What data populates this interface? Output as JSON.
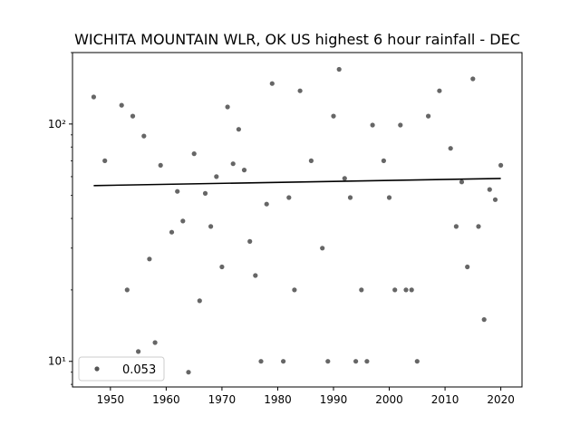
{
  "chart_data": {
    "type": "scatter",
    "title": "WICHITA MOUNTAIN WLR, OK US highest 6 hour rainfall - DEC",
    "xlabel": "",
    "ylabel": "",
    "xlim": [
      1943.2,
      2023.8
    ],
    "ylim": [
      7.8,
      200
    ],
    "yscale": "log",
    "x_ticks": [
      1950,
      1960,
      1970,
      1980,
      1990,
      2000,
      2010,
      2020
    ],
    "y_ticks": [
      {
        "value": 10,
        "label": "10¹"
      },
      {
        "value": 100,
        "label": "10²"
      }
    ],
    "grid": false,
    "legend": {
      "placement": "lower-left",
      "label": "0.053"
    },
    "colors": {
      "points": "#555555",
      "trend": "#000000"
    },
    "points": [
      {
        "x": 1947,
        "y": 130
      },
      {
        "x": 1948,
        "y": 10
      },
      {
        "x": 1949,
        "y": 70
      },
      {
        "x": 1952,
        "y": 120
      },
      {
        "x": 1953,
        "y": 20
      },
      {
        "x": 1954,
        "y": 108
      },
      {
        "x": 1955,
        "y": 11
      },
      {
        "x": 1956,
        "y": 89
      },
      {
        "x": 1957,
        "y": 27
      },
      {
        "x": 1958,
        "y": 12
      },
      {
        "x": 1959,
        "y": 67
      },
      {
        "x": 1961,
        "y": 35
      },
      {
        "x": 1962,
        "y": 52
      },
      {
        "x": 1963,
        "y": 39
      },
      {
        "x": 1964,
        "y": 9
      },
      {
        "x": 1965,
        "y": 75
      },
      {
        "x": 1966,
        "y": 18
      },
      {
        "x": 1967,
        "y": 51
      },
      {
        "x": 1968,
        "y": 37
      },
      {
        "x": 1969,
        "y": 60
      },
      {
        "x": 1970,
        "y": 25
      },
      {
        "x": 1971,
        "y": 118
      },
      {
        "x": 1972,
        "y": 68
      },
      {
        "x": 1973,
        "y": 95
      },
      {
        "x": 1974,
        "y": 64
      },
      {
        "x": 1975,
        "y": 32
      },
      {
        "x": 1976,
        "y": 23
      },
      {
        "x": 1977,
        "y": 10
      },
      {
        "x": 1978,
        "y": 46
      },
      {
        "x": 1979,
        "y": 148
      },
      {
        "x": 1981,
        "y": 10
      },
      {
        "x": 1982,
        "y": 49
      },
      {
        "x": 1983,
        "y": 20
      },
      {
        "x": 1984,
        "y": 138
      },
      {
        "x": 1986,
        "y": 70
      },
      {
        "x": 1988,
        "y": 30
      },
      {
        "x": 1989,
        "y": 10
      },
      {
        "x": 1990,
        "y": 108
      },
      {
        "x": 1991,
        "y": 170
      },
      {
        "x": 1992,
        "y": 59
      },
      {
        "x": 1993,
        "y": 49
      },
      {
        "x": 1994,
        "y": 10
      },
      {
        "x": 1995,
        "y": 20
      },
      {
        "x": 1996,
        "y": 10
      },
      {
        "x": 1997,
        "y": 99
      },
      {
        "x": 1999,
        "y": 70
      },
      {
        "x": 2000,
        "y": 49
      },
      {
        "x": 2001,
        "y": 20
      },
      {
        "x": 2002,
        "y": 99
      },
      {
        "x": 2003,
        "y": 20
      },
      {
        "x": 2004,
        "y": 20
      },
      {
        "x": 2005,
        "y": 10
      },
      {
        "x": 2007,
        "y": 108
      },
      {
        "x": 2009,
        "y": 138
      },
      {
        "x": 2011,
        "y": 79
      },
      {
        "x": 2012,
        "y": 37
      },
      {
        "x": 2013,
        "y": 57
      },
      {
        "x": 2014,
        "y": 25
      },
      {
        "x": 2015,
        "y": 155
      },
      {
        "x": 2016,
        "y": 37
      },
      {
        "x": 2017,
        "y": 15
      },
      {
        "x": 2018,
        "y": 53
      },
      {
        "x": 2019,
        "y": 48
      },
      {
        "x": 2020,
        "y": 67
      }
    ],
    "trend_line": {
      "x": [
        1947,
        2020
      ],
      "y": [
        55,
        59
      ]
    }
  }
}
